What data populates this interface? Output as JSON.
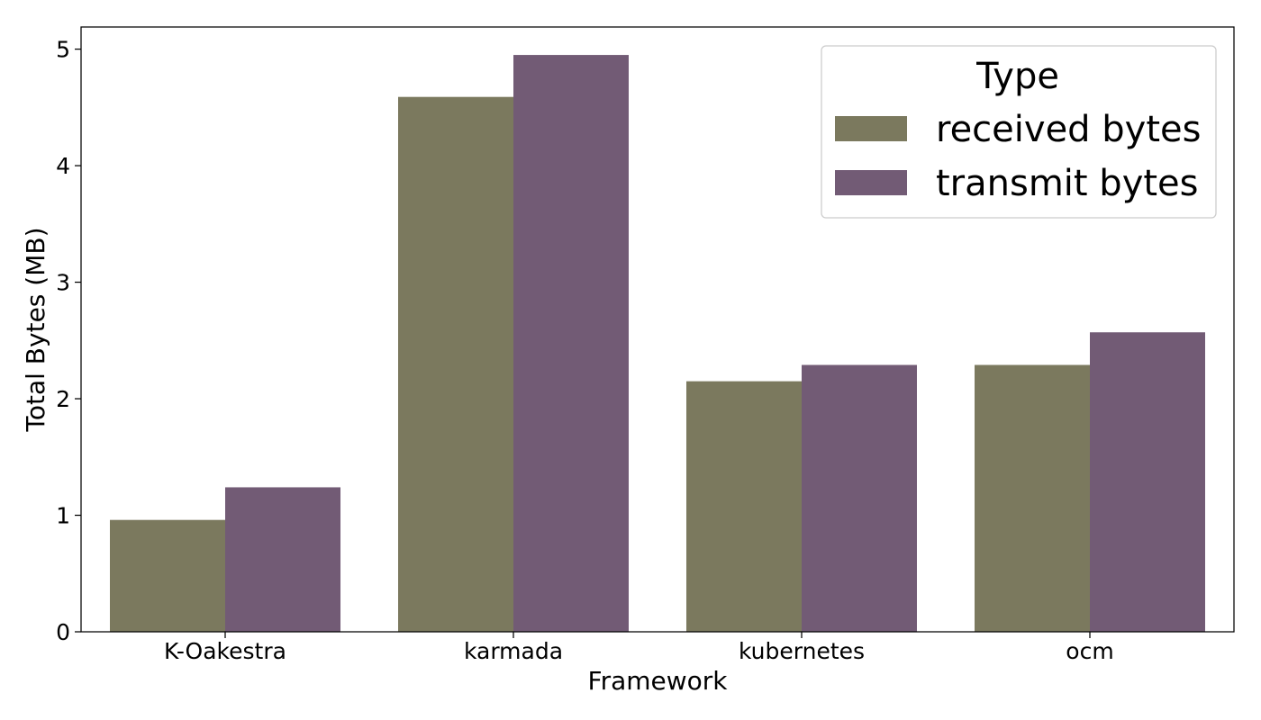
{
  "chart_data": {
    "type": "bar",
    "xlabel": "Framework",
    "ylabel": "Total Bytes (MB)",
    "categories": [
      "K-Oakestra",
      "karmada",
      "kubernetes",
      "ocm"
    ],
    "series": [
      {
        "name": "received bytes",
        "values": [
          0.96,
          4.59,
          2.15,
          2.29
        ],
        "color": "#7b795e"
      },
      {
        "name": "transmit bytes",
        "values": [
          1.24,
          4.95,
          2.29,
          2.57
        ],
        "color": "#725b75"
      }
    ],
    "ylim": [
      0,
      5.19
    ],
    "yticks": [
      0,
      1,
      2,
      3,
      4,
      5
    ],
    "grid": false,
    "legend": {
      "title": "Type",
      "position": "top-right"
    }
  }
}
